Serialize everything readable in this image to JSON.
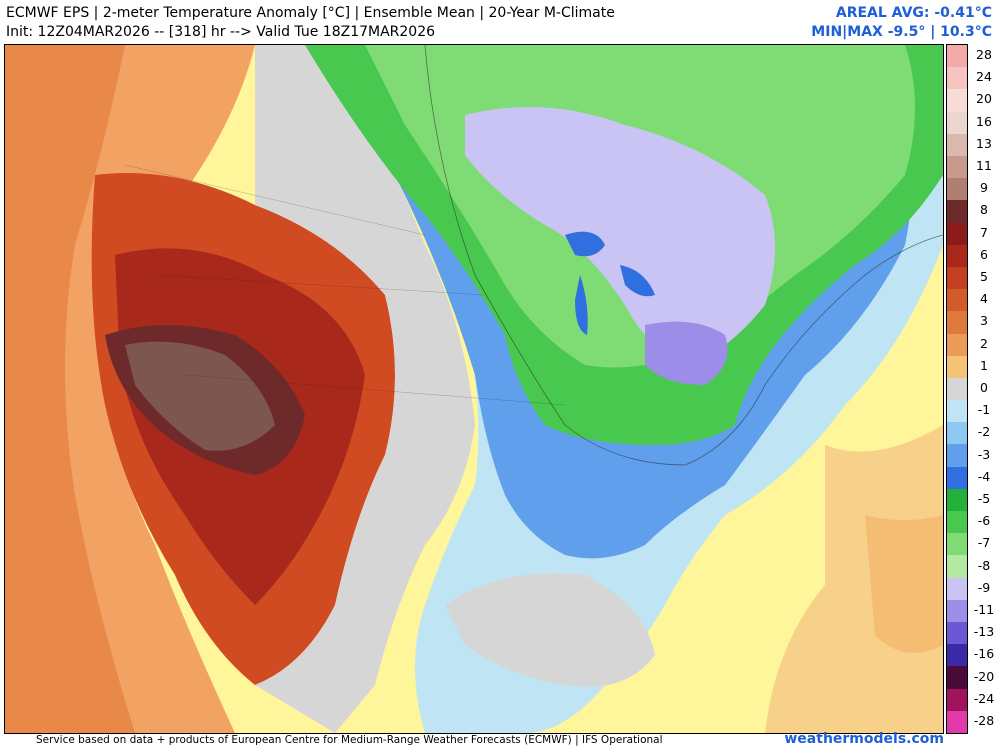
{
  "header": {
    "title_line": "ECMWF EPS | 2-meter Temperature Anomaly [°C] | Ensemble Mean | 20-Year M-Climate",
    "init_line": "Init: 12Z04MAR2026 -- [318] hr --> Valid Tue 18Z17MAR2026",
    "areal_avg": "AREAL AVG: -0.41°C",
    "min_max": "MIN|MAX -9.5° | 10.3°C"
  },
  "legend": {
    "units": "°C",
    "labels": [
      "28",
      "24",
      "20",
      "16",
      "13",
      "11",
      "9",
      "8",
      "7",
      "6",
      "5",
      "4",
      "3",
      "2",
      "1",
      "0",
      "-1",
      "-2",
      "-3",
      "-4",
      "-5",
      "-6",
      "-7",
      "-8",
      "-9",
      "-11",
      "-13",
      "-16",
      "-20",
      "-24",
      "-28"
    ],
    "colors": [
      "#f4aaa8",
      "#f7c4c2",
      "#f8dcd8",
      "#ead5cf",
      "#d9b9ad",
      "#c79a8c",
      "#b07f71",
      "#6e2a2a",
      "#8b1a1a",
      "#a8281b",
      "#c2401f",
      "#d35b2a",
      "#e07a3c",
      "#eb9a57",
      "#f6c376",
      "#d6d6d6",
      "#bfe5f5",
      "#8fc8f0",
      "#5f9fec",
      "#2f6fe0",
      "#23b13a",
      "#49c84f",
      "#7fdc74",
      "#b4e9a3",
      "#c9c4f4",
      "#9c8ee8",
      "#6b58d4",
      "#3a2aa8",
      "#4a0a3a",
      "#a0145e",
      "#e23aa8"
    ]
  },
  "footer": {
    "credit": "Service based on data + products of European Centre for Medium-Range Weather Forecasts (ECMWF) | IFS Operational",
    "brand": "weathermodels.com"
  }
}
